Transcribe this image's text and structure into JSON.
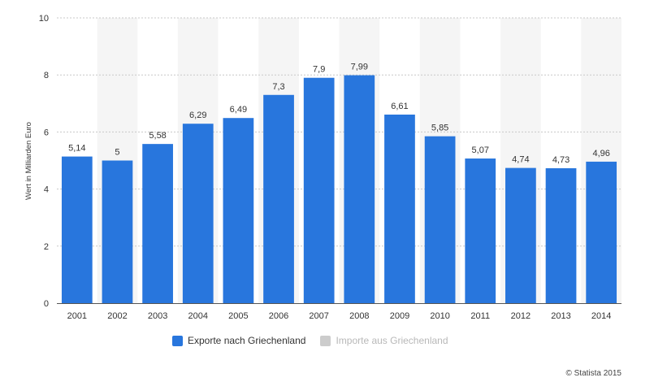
{
  "chart_data": {
    "type": "bar",
    "categories": [
      "2001",
      "2002",
      "2003",
      "2004",
      "2005",
      "2006",
      "2007",
      "2008",
      "2009",
      "2010",
      "2011",
      "2012",
      "2013",
      "2014"
    ],
    "series": [
      {
        "name": "Exporte nach Griechenland",
        "values": [
          5.14,
          5,
          5.58,
          6.29,
          6.49,
          7.3,
          7.9,
          7.99,
          6.61,
          5.85,
          5.07,
          4.74,
          4.73,
          4.96
        ],
        "labels": [
          "5,14",
          "5",
          "5,58",
          "6,29",
          "6,49",
          "7,3",
          "7,9",
          "7,99",
          "6,61",
          "5,85",
          "5,07",
          "4,74",
          "4,73",
          "4,96"
        ],
        "color": "#2876dd",
        "visible": true
      },
      {
        "name": "Importe aus Griechenland",
        "color": "#cccccc",
        "visible": false
      }
    ],
    "ylabel": "Wert in Milliarden Euro",
    "xlabel": "",
    "ylim": [
      0,
      10
    ],
    "yticks": [
      0,
      2,
      4,
      6,
      8,
      10
    ],
    "grid": true,
    "legend_position": "bottom"
  },
  "colors": {
    "bar": "#2876dd",
    "band": "#f5f5f5",
    "legend_inactive": "#cccccc"
  },
  "credit": "© Statista 2015"
}
